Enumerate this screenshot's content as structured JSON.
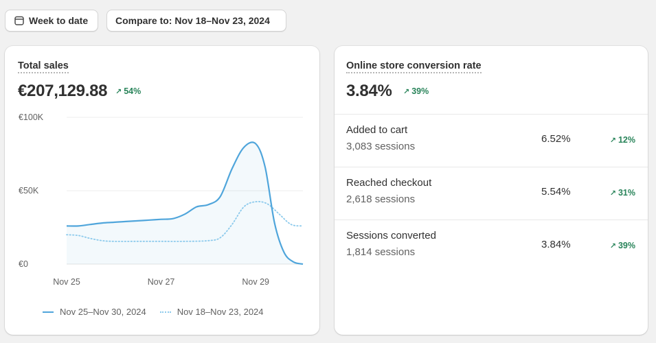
{
  "filters": {
    "date_range": "Week to date",
    "compare": "Compare to: Nov 18–Nov 23, 2024"
  },
  "total_sales": {
    "title": "Total sales",
    "value": "€207,129.88",
    "delta": "54%",
    "delta_direction": "up",
    "legend": [
      "Nov 25–Nov 30, 2024",
      "Nov 18–Nov 23, 2024"
    ]
  },
  "conversion": {
    "title": "Online store conversion rate",
    "value": "3.84%",
    "delta": "39%",
    "rows": [
      {
        "label": "Added to cart",
        "sessions": "3,083 sessions",
        "rate": "6.52%",
        "delta": "12%"
      },
      {
        "label": "Reached checkout",
        "sessions": "2,618 sessions",
        "rate": "5.54%",
        "delta": "31%"
      },
      {
        "label": "Sessions converted",
        "sessions": "1,814 sessions",
        "rate": "3.84%",
        "delta": "39%"
      }
    ]
  },
  "colors": {
    "current_series": "#4fa5db",
    "previous_series": "#8ccaec",
    "positive": "#29845a"
  },
  "chart_data": {
    "type": "line",
    "y_tick_labels": [
      "€100K",
      "€50K",
      "€0"
    ],
    "y_ticks": [
      100000,
      50000,
      0
    ],
    "ylim": [
      0,
      100000
    ],
    "x_tick_labels": [
      "Nov 25",
      "Nov 27",
      "Nov 29"
    ],
    "x_ticks": [
      0,
      2,
      4
    ],
    "xlim": [
      0,
      5
    ],
    "grid": true,
    "legend_position": "bottom",
    "series": [
      {
        "name": "Nov 25–Nov 30, 2024",
        "style": "solid",
        "x": [
          0,
          0.25,
          0.5,
          0.75,
          1,
          1.25,
          1.5,
          1.75,
          2,
          2.25,
          2.5,
          2.75,
          3,
          3.25,
          3.5,
          3.75,
          4,
          4.2,
          4.4,
          4.6,
          4.8,
          5
        ],
        "y": [
          26000,
          26000,
          27000,
          28000,
          28500,
          29000,
          29500,
          30000,
          30500,
          31000,
          34000,
          39000,
          40500,
          46000,
          65000,
          79500,
          82000,
          66000,
          28000,
          8000,
          1500,
          0
        ]
      },
      {
        "name": "Nov 18–Nov 23, 2024",
        "style": "dotted",
        "x": [
          0,
          0.25,
          0.5,
          0.75,
          1,
          1.5,
          2,
          2.5,
          3,
          3.25,
          3.5,
          3.75,
          4,
          4.25,
          4.5,
          4.75,
          5
        ],
        "y": [
          20000,
          19500,
          17500,
          16000,
          15500,
          15500,
          15500,
          15500,
          16000,
          18000,
          27000,
          39000,
          42500,
          41000,
          34000,
          27000,
          26000
        ]
      }
    ]
  }
}
